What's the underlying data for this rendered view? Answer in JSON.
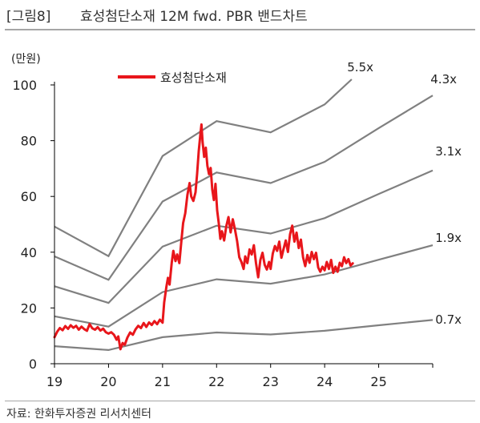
{
  "figure": {
    "label": "[그림8]",
    "title": "효성첨단소재 12M fwd. PBR 밴드차트",
    "source": "자료: 한화투자증권 리서치센터"
  },
  "chart_data": {
    "type": "line",
    "unit_label": "(만원)",
    "x_ticks": [
      "19",
      "20",
      "21",
      "22",
      "23",
      "24",
      "25"
    ],
    "xlim": [
      2019.0,
      2026.0
    ],
    "ylim": [
      0,
      100
    ],
    "y_ticks": [
      0,
      20,
      40,
      60,
      80,
      100
    ],
    "grid": false,
    "legend": {
      "position": "top-left",
      "label": "효성첨단소재"
    },
    "colors": {
      "price": "#e8161b",
      "band": "#808080",
      "axis": "#000000"
    },
    "bands": [
      {
        "name": "0.7x",
        "points": [
          [
            2019.0,
            6.3
          ],
          [
            2020.0,
            4.9
          ],
          [
            2021.0,
            9.5
          ],
          [
            2022.0,
            11.2
          ],
          [
            2023.0,
            10.5
          ],
          [
            2024.0,
            11.8
          ],
          [
            2025.0,
            13.8
          ],
          [
            2026.0,
            15.7
          ]
        ]
      },
      {
        "name": "1.9x",
        "points": [
          [
            2019.0,
            17.0
          ],
          [
            2020.0,
            13.3
          ],
          [
            2021.0,
            25.7
          ],
          [
            2022.0,
            30.3
          ],
          [
            2023.0,
            28.7
          ],
          [
            2024.0,
            32.0
          ],
          [
            2025.0,
            37.3
          ],
          [
            2026.0,
            42.5
          ]
        ]
      },
      {
        "name": "3.1x",
        "points": [
          [
            2019.0,
            27.8
          ],
          [
            2020.0,
            21.8
          ],
          [
            2021.0,
            42.0
          ],
          [
            2022.0,
            49.5
          ],
          [
            2023.0,
            46.7
          ],
          [
            2024.0,
            52.2
          ],
          [
            2025.0,
            60.9
          ],
          [
            2026.0,
            69.3
          ]
        ]
      },
      {
        "name": "4.3x",
        "points": [
          [
            2019.0,
            38.5
          ],
          [
            2020.0,
            30.1
          ],
          [
            2021.0,
            58.2
          ],
          [
            2022.0,
            68.6
          ],
          [
            2023.0,
            64.8
          ],
          [
            2024.0,
            72.4
          ],
          [
            2025.0,
            84.5
          ],
          [
            2026.0,
            96.2
          ]
        ]
      },
      {
        "name": "5.5x",
        "points": [
          [
            2019.0,
            49.2
          ],
          [
            2020.0,
            38.6
          ],
          [
            2021.0,
            74.5
          ],
          [
            2022.0,
            87.0
          ],
          [
            2023.0,
            83.0
          ],
          [
            2024.0,
            93.0
          ],
          [
            2024.5,
            102.0
          ]
        ]
      }
    ],
    "price_series": {
      "name": "효성첨단소재",
      "points": [
        [
          2019.0,
          9.5
        ],
        [
          2019.05,
          11.5
        ],
        [
          2019.1,
          12.8
        ],
        [
          2019.15,
          12.0
        ],
        [
          2019.2,
          13.5
        ],
        [
          2019.25,
          12.5
        ],
        [
          2019.3,
          13.8
        ],
        [
          2019.35,
          12.9
        ],
        [
          2019.4,
          13.6
        ],
        [
          2019.45,
          12.2
        ],
        [
          2019.5,
          13.3
        ],
        [
          2019.55,
          12.4
        ],
        [
          2019.6,
          11.8
        ],
        [
          2019.65,
          14.2
        ],
        [
          2019.7,
          12.7
        ],
        [
          2019.75,
          12.2
        ],
        [
          2019.8,
          13.1
        ],
        [
          2019.85,
          11.9
        ],
        [
          2019.9,
          12.6
        ],
        [
          2019.95,
          11.3
        ],
        [
          2020.0,
          10.8
        ],
        [
          2020.05,
          11.3
        ],
        [
          2020.1,
          10.4
        ],
        [
          2020.15,
          8.6
        ],
        [
          2020.18,
          9.8
        ],
        [
          2020.22,
          5.2
        ],
        [
          2020.26,
          7.4
        ],
        [
          2020.3,
          6.8
        ],
        [
          2020.35,
          9.4
        ],
        [
          2020.4,
          11.2
        ],
        [
          2020.45,
          10.4
        ],
        [
          2020.5,
          12.3
        ],
        [
          2020.55,
          13.6
        ],
        [
          2020.6,
          12.8
        ],
        [
          2020.65,
          14.6
        ],
        [
          2020.7,
          13.2
        ],
        [
          2020.75,
          14.8
        ],
        [
          2020.8,
          13.9
        ],
        [
          2020.85,
          15.3
        ],
        [
          2020.9,
          14.2
        ],
        [
          2020.95,
          15.8
        ],
        [
          2021.0,
          14.7
        ],
        [
          2021.03,
          22.0
        ],
        [
          2021.07,
          27.5
        ],
        [
          2021.1,
          30.8
        ],
        [
          2021.13,
          28.4
        ],
        [
          2021.17,
          36.2
        ],
        [
          2021.2,
          40.5
        ],
        [
          2021.24,
          36.8
        ],
        [
          2021.27,
          39.2
        ],
        [
          2021.31,
          36.1
        ],
        [
          2021.35,
          44.5
        ],
        [
          2021.38,
          50.4
        ],
        [
          2021.42,
          54.0
        ],
        [
          2021.46,
          60.6
        ],
        [
          2021.5,
          64.8
        ],
        [
          2021.53,
          60.0
        ],
        [
          2021.57,
          58.4
        ],
        [
          2021.61,
          61.5
        ],
        [
          2021.64,
          68.2
        ],
        [
          2021.67,
          76.2
        ],
        [
          2021.7,
          82.4
        ],
        [
          2021.72,
          85.8
        ],
        [
          2021.74,
          79.5
        ],
        [
          2021.77,
          74.2
        ],
        [
          2021.8,
          77.5
        ],
        [
          2021.83,
          71.0
        ],
        [
          2021.86,
          68.0
        ],
        [
          2021.89,
          70.2
        ],
        [
          2021.92,
          62.5
        ],
        [
          2021.95,
          58.7
        ],
        [
          2021.98,
          64.5
        ],
        [
          2022.01,
          55.0
        ],
        [
          2022.04,
          50.4
        ],
        [
          2022.07,
          44.8
        ],
        [
          2022.1,
          47.5
        ],
        [
          2022.14,
          44.2
        ],
        [
          2022.18,
          49.3
        ],
        [
          2022.22,
          52.6
        ],
        [
          2022.26,
          47.1
        ],
        [
          2022.3,
          51.8
        ],
        [
          2022.34,
          48.2
        ],
        [
          2022.38,
          44.0
        ],
        [
          2022.42,
          38.2
        ],
        [
          2022.46,
          36.5
        ],
        [
          2022.5,
          34.0
        ],
        [
          2022.53,
          38.5
        ],
        [
          2022.57,
          36.1
        ],
        [
          2022.61,
          41.0
        ],
        [
          2022.65,
          39.2
        ],
        [
          2022.69,
          42.5
        ],
        [
          2022.73,
          36.0
        ],
        [
          2022.77,
          31.0
        ],
        [
          2022.81,
          37.2
        ],
        [
          2022.85,
          39.8
        ],
        [
          2022.89,
          35.5
        ],
        [
          2022.93,
          33.8
        ],
        [
          2022.97,
          36.5
        ],
        [
          2023.0,
          34.0
        ],
        [
          2023.04,
          39.5
        ],
        [
          2023.08,
          42.2
        ],
        [
          2023.12,
          40.5
        ],
        [
          2023.16,
          43.8
        ],
        [
          2023.2,
          38.0
        ],
        [
          2023.24,
          41.2
        ],
        [
          2023.28,
          44.2
        ],
        [
          2023.32,
          40.1
        ],
        [
          2023.36,
          46.5
        ],
        [
          2023.4,
          49.5
        ],
        [
          2023.44,
          43.8
        ],
        [
          2023.48,
          47.0
        ],
        [
          2023.52,
          41.5
        ],
        [
          2023.56,
          44.5
        ],
        [
          2023.6,
          38.2
        ],
        [
          2023.64,
          35.0
        ],
        [
          2023.68,
          39.0
        ],
        [
          2023.72,
          36.2
        ],
        [
          2023.76,
          40.1
        ],
        [
          2023.8,
          37.5
        ],
        [
          2023.84,
          39.8
        ],
        [
          2023.88,
          34.5
        ],
        [
          2023.92,
          33.0
        ],
        [
          2023.96,
          34.8
        ],
        [
          2024.0,
          33.5
        ],
        [
          2024.04,
          36.5
        ],
        [
          2024.08,
          34.0
        ],
        [
          2024.12,
          37.2
        ],
        [
          2024.16,
          32.6
        ],
        [
          2024.2,
          34.8
        ],
        [
          2024.24,
          33.0
        ],
        [
          2024.28,
          36.2
        ],
        [
          2024.32,
          35.0
        ],
        [
          2024.36,
          38.2
        ],
        [
          2024.4,
          36.1
        ],
        [
          2024.44,
          37.5
        ],
        [
          2024.48,
          35.2
        ],
        [
          2024.52,
          36.0
        ]
      ]
    }
  }
}
